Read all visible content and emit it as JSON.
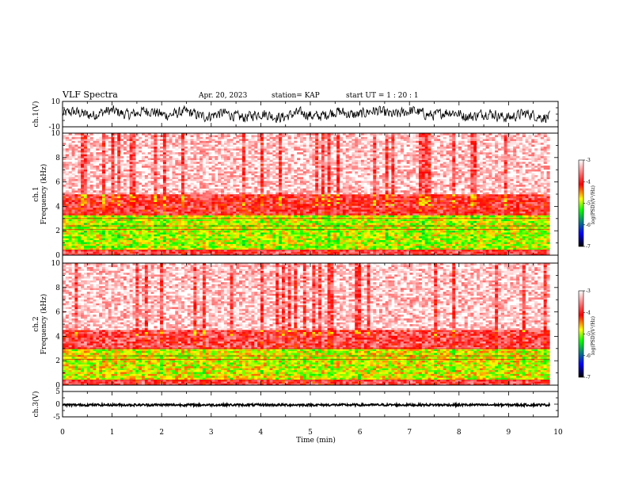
{
  "header": {
    "title": "VLF Spectra",
    "date": "Apr. 20, 2023",
    "station": "station= KAP",
    "start": "start  UT =   1 : 20 : 1"
  },
  "chart_data": [
    {
      "type": "line",
      "name": "ch1-waveform",
      "ylabel": "ch.1(V)",
      "ylim": [
        -10,
        10
      ],
      "ytick_labels": [
        "10",
        "-10"
      ],
      "xlim": [
        0,
        10
      ],
      "amplitude_range": [
        -8,
        8
      ]
    },
    {
      "type": "heatmap",
      "name": "ch1-spectrogram",
      "ylabel": "ch.1\nFrequency (kHz)",
      "ylim": [
        0,
        10
      ],
      "xlim": [
        0,
        9.83
      ],
      "ytick_labels": [
        "10",
        "8",
        "6",
        "4",
        "2",
        "0"
      ],
      "colorbar": {
        "label": "log(PSD)(V²/Hz)",
        "range": [
          -7,
          -3
        ],
        "tick_labels": [
          "-3",
          "-4",
          "-5",
          "-6",
          "-7"
        ],
        "colors": [
          "#ffffff",
          "#ff0000",
          "#ffff00",
          "#00ff00",
          "#0000ff",
          "#000000"
        ]
      },
      "bands_khz": [
        {
          "from": 0,
          "to": 0.5,
          "level": -3.8
        },
        {
          "from": 0.5,
          "to": 3.3,
          "level": -4.9
        },
        {
          "from": 3.3,
          "to": 5.0,
          "level": -3.9
        },
        {
          "from": 5.0,
          "to": 10,
          "level": -3.2
        }
      ]
    },
    {
      "type": "heatmap",
      "name": "ch2-spectrogram",
      "ylabel": "ch.2\nFrequency (kHz)",
      "ylim": [
        0,
        10
      ],
      "xlim": [
        0,
        9.83
      ],
      "ytick_labels": [
        "10",
        "8",
        "6",
        "4",
        "2",
        "0"
      ],
      "colorbar": {
        "label": "log(PSD)(V²/Hz)",
        "range": [
          -7,
          -3
        ],
        "tick_labels": [
          "-3",
          "-4",
          "-5",
          "-6",
          "-7"
        ],
        "colors": [
          "#ffffff",
          "#ff0000",
          "#ffff00",
          "#00ff00",
          "#0000ff",
          "#000000"
        ]
      },
      "bands_khz": [
        {
          "from": 0,
          "to": 0.5,
          "level": -3.8
        },
        {
          "from": 0.5,
          "to": 3.0,
          "level": -4.8
        },
        {
          "from": 3.0,
          "to": 4.5,
          "level": -3.8
        },
        {
          "from": 4.5,
          "to": 10,
          "level": -3.2
        }
      ]
    },
    {
      "type": "line",
      "name": "ch3-waveform",
      "ylabel": "ch.3(V)",
      "ylim": [
        -5,
        5
      ],
      "ytick_labels": [
        "5",
        "0",
        "-5"
      ],
      "xlim": [
        0,
        9.83
      ],
      "amplitude_range": [
        -0.8,
        0.2
      ],
      "xlabel": "Time  (min)",
      "xtick_labels": [
        "0",
        "1",
        "2",
        "3",
        "4",
        "5",
        "6",
        "7",
        "8",
        "9",
        "10"
      ]
    }
  ]
}
